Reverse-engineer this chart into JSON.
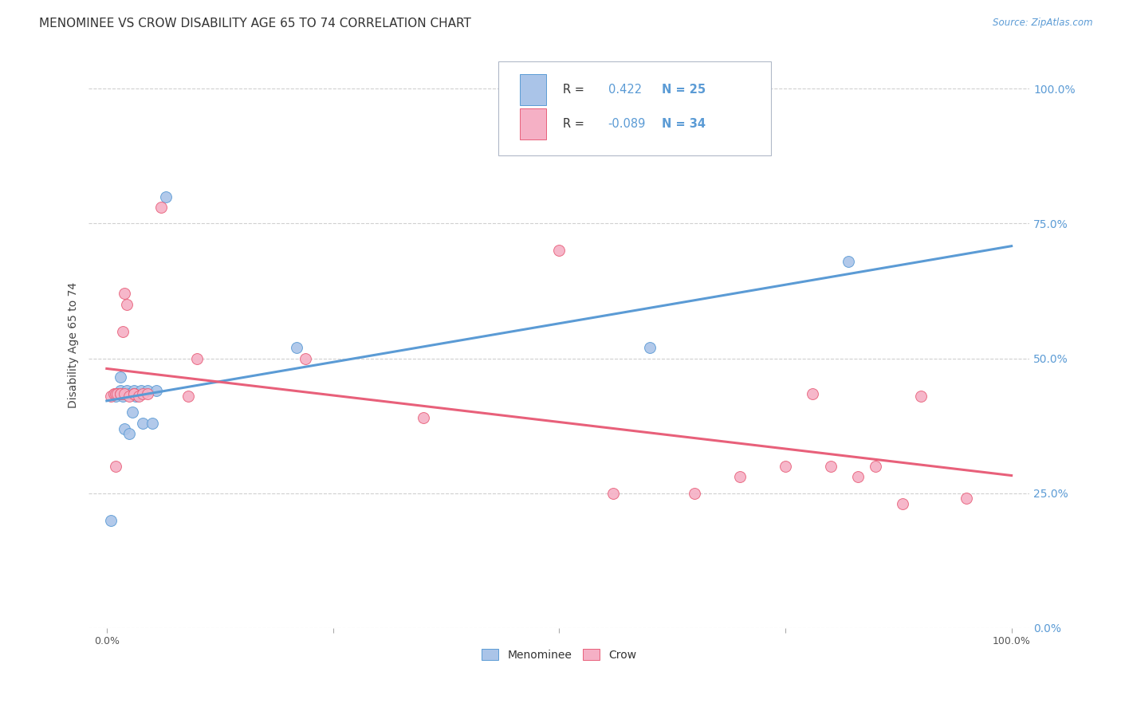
{
  "title": "MENOMINEE VS CROW DISABILITY AGE 65 TO 74 CORRELATION CHART",
  "source": "Source: ZipAtlas.com",
  "ylabel": "Disability Age 65 to 74",
  "ytick_vals": [
    0.0,
    0.25,
    0.5,
    0.75,
    1.0
  ],
  "ytick_labels": [
    "0.0%",
    "25.0%",
    "50.0%",
    "75.0%",
    "100.0%"
  ],
  "xtick_vals": [
    0.0,
    1.0
  ],
  "xtick_labels": [
    "0.0%",
    "100.0%"
  ],
  "menominee_R": "0.422",
  "menominee_N": "25",
  "crow_R": "-0.089",
  "crow_N": "34",
  "menominee_color": "#aac4e8",
  "crow_color": "#f5b0c5",
  "menominee_line_color": "#5b9bd5",
  "crow_line_color": "#e8607a",
  "background_color": "#ffffff",
  "grid_color": "#d0d0d0",
  "menominee_x": [
    0.005,
    0.01,
    0.012,
    0.015,
    0.015,
    0.018,
    0.02,
    0.02,
    0.022,
    0.025,
    0.025,
    0.028,
    0.03,
    0.03,
    0.032,
    0.035,
    0.038,
    0.04,
    0.045,
    0.05,
    0.055,
    0.065,
    0.21,
    0.6,
    0.82
  ],
  "menominee_y": [
    0.2,
    0.43,
    0.435,
    0.44,
    0.465,
    0.43,
    0.37,
    0.435,
    0.44,
    0.36,
    0.435,
    0.4,
    0.44,
    0.435,
    0.43,
    0.435,
    0.44,
    0.38,
    0.44,
    0.38,
    0.44,
    0.8,
    0.52,
    0.52,
    0.68
  ],
  "crow_x": [
    0.005,
    0.008,
    0.01,
    0.01,
    0.012,
    0.015,
    0.015,
    0.018,
    0.02,
    0.02,
    0.022,
    0.025,
    0.03,
    0.03,
    0.035,
    0.04,
    0.045,
    0.06,
    0.09,
    0.1,
    0.22,
    0.35,
    0.5,
    0.56,
    0.65,
    0.7,
    0.75,
    0.78,
    0.8,
    0.83,
    0.85,
    0.88,
    0.9,
    0.95
  ],
  "crow_y": [
    0.43,
    0.435,
    0.435,
    0.3,
    0.435,
    0.435,
    0.435,
    0.55,
    0.62,
    0.435,
    0.6,
    0.43,
    0.435,
    0.435,
    0.43,
    0.435,
    0.435,
    0.78,
    0.43,
    0.5,
    0.5,
    0.39,
    0.7,
    0.25,
    0.25,
    0.28,
    0.3,
    0.435,
    0.3,
    0.28,
    0.3,
    0.23,
    0.43,
    0.24
  ],
  "xlim": [
    -0.02,
    1.02
  ],
  "ylim": [
    0.0,
    1.05
  ],
  "marker_size": 100,
  "title_fontsize": 11,
  "axis_fontsize": 9,
  "tick_color": "#5b9bd5"
}
